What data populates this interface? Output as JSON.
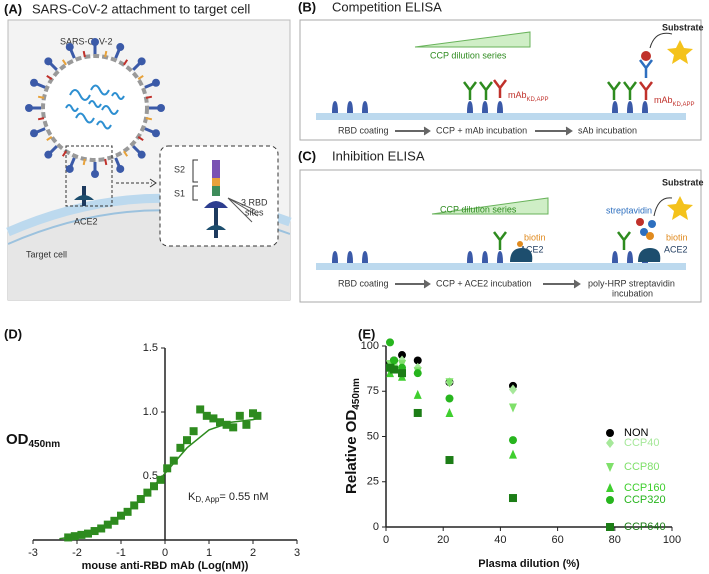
{
  "panels": {
    "A": {
      "label": "(A)",
      "title": "SARS-CoV-2 attachment to target cell",
      "virus": "SARS-CoV-2",
      "s2": "S2",
      "s1": "S1",
      "rbd_sites_line1": "3 RBD",
      "rbd_sites_line2": "sites",
      "receptor": "ACE2",
      "cell": "Target cell"
    },
    "B": {
      "label": "(B)",
      "title": "Competition ELISA",
      "gradient": "CCP dilution series",
      "mab": "mAb",
      "mab_sub": "KD,APP",
      "mab2": "mAb",
      "mab2_sub": "KD,APP",
      "substrate": "Substrate",
      "steps": [
        "RBD coating",
        "CCP + mAb incubation",
        "sAb incubation"
      ]
    },
    "C": {
      "label": "(C)",
      "title": "Inhibition ELISA",
      "gradient": "CCP dilution series",
      "biotin": "biotin",
      "ace2": "ACE2",
      "streptavidin": "streptavidin",
      "biotin2": "biotin",
      "ace2_2": "ACE2",
      "substrate": "Substrate",
      "steps": [
        "RBD coating",
        "CCP + ACE2 incubation"
      ],
      "step3_line1": "poly-HRP streptavidin",
      "step3_line2": "incubation"
    }
  },
  "chart_data": [
    {
      "type": "scatter",
      "panel_label": "(D)",
      "y_label": "OD",
      "y_label_sub": "450nm",
      "x_label": "mouse anti-RBD mAb (Log(nM))",
      "annotation": "K",
      "annotation_sub": "D, App",
      "annotation_rest": "= 0.55 nM",
      "xlim": [
        -3,
        3
      ],
      "ylim": [
        0,
        1.5
      ],
      "xticks": [
        -3,
        -2,
        -1,
        0,
        1,
        2,
        3
      ],
      "yticks": [
        0.5,
        {
          "value": 1,
          "label": "1.0"
        },
        {
          "value": 1.5,
          "label": "1.5"
        }
      ],
      "series": [
        {
          "color": "#2e8b1f",
          "marker": "square",
          "x": [
            -2.2,
            -2.05,
            -1.9,
            -1.75,
            -1.6,
            -1.45,
            -1.3,
            -1.15,
            -1.0,
            -0.85,
            -0.7,
            -0.55,
            -0.4,
            -0.25,
            -0.1,
            0.05,
            0.2,
            0.35,
            0.5,
            0.65,
            0.8,
            0.95,
            1.1,
            1.25,
            1.4,
            1.55,
            1.7,
            1.85,
            2.0,
            2.1
          ],
          "values": [
            0.02,
            0.03,
            0.04,
            0.05,
            0.07,
            0.09,
            0.12,
            0.15,
            0.19,
            0.22,
            0.27,
            0.32,
            0.37,
            0.42,
            0.47,
            0.56,
            0.62,
            0.72,
            0.78,
            0.85,
            1.02,
            0.97,
            0.95,
            0.92,
            0.9,
            0.88,
            0.97,
            0.9,
            0.99,
            0.97
          ]
        },
        {
          "color": "#2e8b1f",
          "marker": "line",
          "x": [
            -2.4,
            -2,
            -1.5,
            -1,
            -0.5,
            0,
            0.5,
            1,
            1.5,
            2,
            2.1
          ],
          "values": [
            0.01,
            0.03,
            0.08,
            0.18,
            0.33,
            0.52,
            0.72,
            0.86,
            0.92,
            0.94,
            0.95
          ]
        }
      ]
    },
    {
      "type": "scatter",
      "panel_label": "(E)",
      "y_label": "Relative OD",
      "y_label_sub": "450nm",
      "x_label": "Plasma dilution (%)",
      "xlim": [
        0,
        100
      ],
      "ylim": [
        0,
        100
      ],
      "xticks": [
        0,
        20,
        40,
        60,
        80,
        100
      ],
      "yticks": [
        0,
        25,
        50,
        75,
        100
      ],
      "legend": "right",
      "x": [
        1.4,
        2.8,
        5.6,
        11.1,
        22.2,
        44.4
      ],
      "series": [
        {
          "name": "NON",
          "color": "#000000",
          "marker": "circle",
          "values": [
            90,
            92,
            95,
            92,
            80,
            78
          ]
        },
        {
          "name": "CCP40",
          "color": "#a6e89a",
          "marker": "diamond",
          "values": [
            88,
            90,
            92,
            88,
            80,
            76
          ]
        },
        {
          "name": "CCP80",
          "color": "#7fe06a",
          "marker": "triangle-down",
          "values": [
            90,
            91,
            90,
            86,
            80,
            66
          ]
        },
        {
          "name": "CCP160",
          "color": "#3fcf2e",
          "marker": "triangle",
          "values": [
            85,
            88,
            83,
            73,
            63,
            40
          ]
        },
        {
          "name": "CCP320",
          "color": "#27b51e",
          "marker": "circle",
          "values": [
            102,
            92,
            88,
            85,
            71,
            48
          ]
        },
        {
          "name": "CCP640",
          "color": "#1c7d16",
          "marker": "square",
          "values": [
            88,
            87,
            85,
            63,
            37,
            16
          ]
        }
      ]
    }
  ]
}
